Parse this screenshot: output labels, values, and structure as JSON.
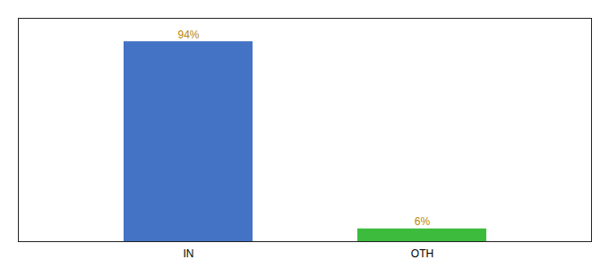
{
  "chart_data": {
    "type": "bar",
    "categories": [
      "IN",
      "OTH"
    ],
    "values": [
      94,
      6
    ],
    "value_labels": [
      "94%",
      "6%"
    ],
    "colors": [
      "#4472c4",
      "#3dbb3d"
    ],
    "ylim": [
      0,
      105
    ],
    "data_labels": true,
    "tick_labels": "x",
    "grid": false
  }
}
